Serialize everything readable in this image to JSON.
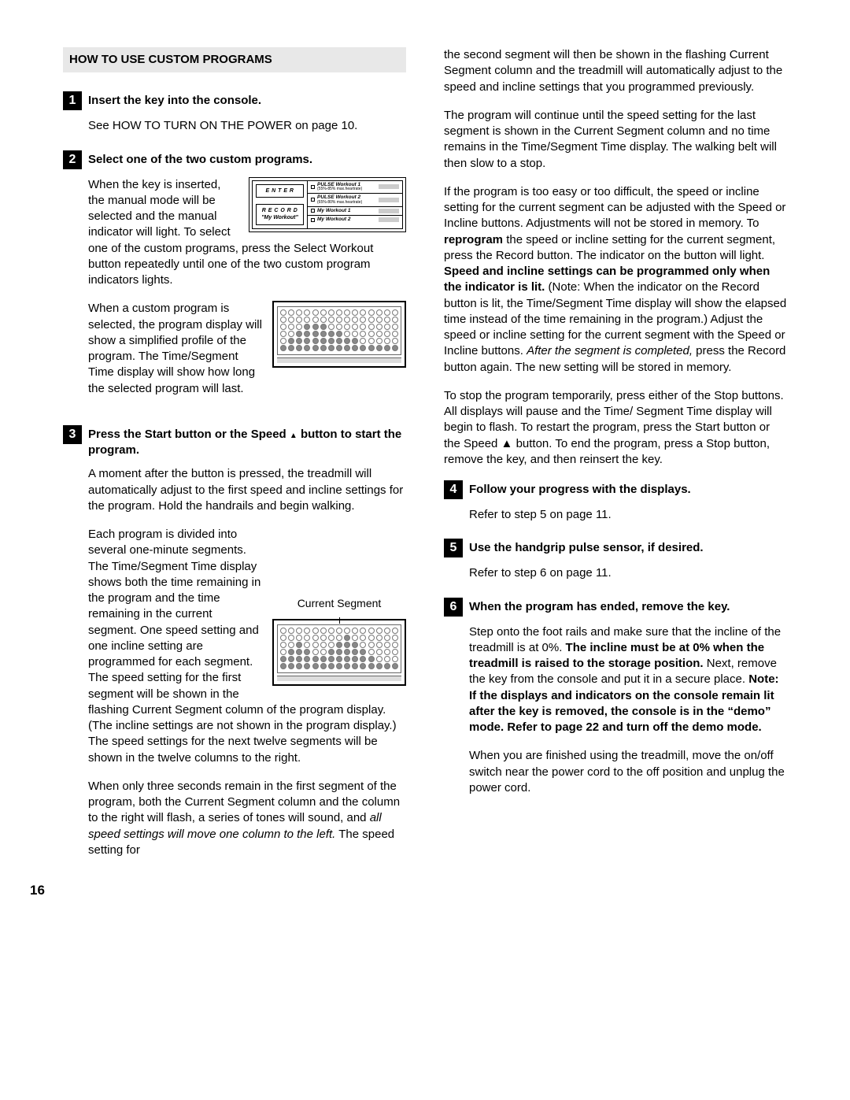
{
  "page_number": "16",
  "header": "HOW TO USE CUSTOM PROGRAMS",
  "panel1": {
    "btn_enter": "E N T E R",
    "btn_record_l1": "R E C O R D",
    "btn_record_l2": "\"My Workout\"",
    "r1": "PULSE Workout 1",
    "r1s": "(55%-85% max.heartrate)",
    "r2": "PULSE Workout 2",
    "r2s": "(65%-80% max.heartrate)",
    "r3": "My Workout 1",
    "r4": "My Workout 2"
  },
  "steps": {
    "s1": {
      "num": "1",
      "title": "Insert the key into the console.",
      "p1": "See HOW TO TURN ON THE POWER on page 10."
    },
    "s2": {
      "num": "2",
      "title": "Select one of the two custom programs.",
      "p1a": "When the key is inserted, the manual mode will be selected and the manual indicator will light. To select",
      "p1b": "one of the custom programs, press the Select Workout button repeatedly until one of the two custom program indicators lights.",
      "p2a": "When a custom program is selected, the program display will show a simplified profile of the program. The Time/Segment Time display will show how",
      "p2b": "long the selected program will last."
    },
    "s3": {
      "num": "3",
      "title_a": "Press the Start button or the Speed ",
      "title_b": " button to start the program.",
      "p1": "A moment after the button is pressed, the treadmill will automatically adjust to the first speed and incline settings for the program. Hold the handrails and begin walking.",
      "p2a": "Each program is divided into several one-minute segments. The Time/Segment Time display shows both the time remaining in the program and the time remaining in the current segment. One speed setting and one incline setting are programmed for each segment. The speed setting for the first segment will be shown in the flashing Current Segment column of the program display. (The incline settings are not shown in the program display.) The speed settings for the next twelve segments will be",
      "p2b": "shown in the twelve columns to the right.",
      "cs_label": "Current Segment",
      "p3a": "When only three seconds remain in the first segment of the program, both the Current Segment column and the column to the right will flash, a series of tones will sound, and ",
      "p3i": "all speed settings will move one column to the left.",
      "p3b": " The speed setting for"
    },
    "col2_top": {
      "p1": "the second segment will then be shown in the flashing Current Segment column and the treadmill will automatically adjust to the speed and incline settings that you programmed previously.",
      "p2": "The program will continue until the speed setting for the last segment is shown in the Current Segment column and no time remains in the Time/Segment Time display. The walking belt will then slow to a stop.",
      "p3_runs": [
        {
          "t": "If the program is too easy or too difficult, the speed or incline setting for the current segment can be adjusted with the Speed or Incline buttons. Adjustments will not be stored in memory. To "
        },
        {
          "t": "reprogram",
          "b": true
        },
        {
          "t": " the speed or incline setting for the current segment, press the Record button. The indicator on the button will light. "
        },
        {
          "t": "Speed and incline settings can be programmed only when the indicator is lit.",
          "b": true
        },
        {
          "t": " (Note: When the indicator on the Record button is lit, the Time/Segment Time display will show the elapsed time instead of the time remaining in the program.) Adjust the speed or incline setting for the current segment with the Speed or Incline buttons. "
        },
        {
          "t": "After the segment is completed,",
          "i": true
        },
        {
          "t": " press the Record button again. The new setting will be stored in memory."
        }
      ],
      "p4": "To stop the program temporarily, press either of the Stop buttons. All displays will pause and the Time/ Segment Time display will begin to flash. To restart the program, press the Start button or the Speed ▲ button. To end the program, press a Stop button, remove the key, and then reinsert the key."
    },
    "s4": {
      "num": "4",
      "title": "Follow your progress with the displays.",
      "p1": "Refer to step 5 on page 11."
    },
    "s5": {
      "num": "5",
      "title": "Use the handgrip pulse sensor, if desired.",
      "p1": "Refer to step 6 on page 11."
    },
    "s6": {
      "num": "6",
      "title": "When the program has ended, remove the key.",
      "p1_runs": [
        {
          "t": "Step onto the foot rails and make sure that the incline of the treadmill is at 0%. "
        },
        {
          "t": "The incline must be at 0% when the treadmill is raised to the storage position.",
          "b": true
        },
        {
          "t": " Next, remove the key from the console and put it in a secure place. "
        },
        {
          "t": "Note: If the displays and indicators on the console remain lit after the key is removed, the console is in the “demo” mode. Refer to page 22 and turn off the demo mode.",
          "b": true
        }
      ],
      "p2": "When you are finished using the treadmill, move the on/off switch near the power cord to the off position and unplug the power cord."
    }
  },
  "matrix1_fill": [
    [
      0,
      0,
      0,
      0,
      0,
      0,
      0,
      0,
      0,
      0,
      0,
      0,
      0,
      0,
      0
    ],
    [
      0,
      0,
      0,
      0,
      0,
      0,
      0,
      0,
      0,
      0,
      0,
      0,
      0,
      0,
      0
    ],
    [
      0,
      0,
      0,
      1,
      1,
      1,
      0,
      0,
      0,
      0,
      0,
      0,
      0,
      0,
      0
    ],
    [
      0,
      0,
      1,
      1,
      1,
      1,
      1,
      1,
      0,
      0,
      0,
      0,
      0,
      0,
      0
    ],
    [
      0,
      1,
      1,
      1,
      1,
      1,
      1,
      1,
      1,
      1,
      0,
      0,
      0,
      0,
      0
    ],
    [
      1,
      1,
      1,
      1,
      1,
      1,
      1,
      1,
      1,
      1,
      1,
      1,
      1,
      1,
      1
    ]
  ],
  "matrix2_fill": [
    [
      0,
      0,
      0,
      0,
      0,
      0,
      0,
      0,
      0,
      0,
      0,
      0,
      0,
      0,
      0
    ],
    [
      0,
      0,
      0,
      0,
      0,
      0,
      0,
      0,
      1,
      0,
      0,
      0,
      0,
      0,
      0
    ],
    [
      0,
      0,
      1,
      0,
      0,
      0,
      0,
      1,
      1,
      1,
      0,
      0,
      0,
      0,
      0
    ],
    [
      0,
      1,
      1,
      1,
      0,
      0,
      1,
      1,
      1,
      1,
      1,
      0,
      0,
      0,
      0
    ],
    [
      1,
      1,
      1,
      1,
      1,
      1,
      1,
      1,
      1,
      1,
      1,
      1,
      0,
      0,
      0
    ],
    [
      1,
      1,
      1,
      1,
      1,
      1,
      1,
      1,
      1,
      1,
      1,
      1,
      1,
      1,
      1
    ]
  ]
}
